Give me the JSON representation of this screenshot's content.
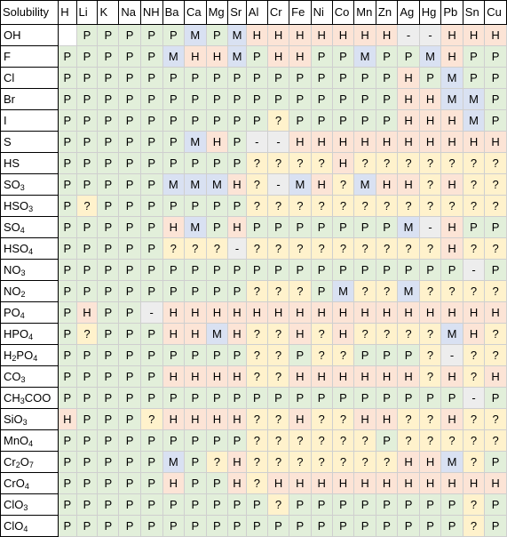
{
  "table": {
    "corner_label": "Solubility",
    "cations": [
      "H",
      "Li",
      "K",
      "Na",
      "NH",
      "Ba",
      "Ca",
      "Mg",
      "Sr",
      "Al",
      "Cr",
      "Fe",
      "Ni",
      "Co",
      "Mn",
      "Zn",
      "Ag",
      "Hg",
      "Pb",
      "Sn",
      "Cu"
    ],
    "legend_colors": {
      "P": "#e2efda",
      "H": "#fce4d6",
      "M": "#d9e1f2",
      "?": "#fff2cc",
      "-": "#ededed"
    },
    "rows": [
      {
        "anion": {
          "base": "OH",
          "sub": ""
        },
        "values": [
          "",
          "P",
          "P",
          "P",
          "P",
          "P",
          "M",
          "P",
          "M",
          "H",
          "H",
          "H",
          "H",
          "H",
          "H",
          "H",
          "-",
          "-",
          "H",
          "H",
          "H"
        ]
      },
      {
        "anion": {
          "base": "F",
          "sub": ""
        },
        "values": [
          "P",
          "P",
          "P",
          "P",
          "P",
          "M",
          "H",
          "H",
          "M",
          "P",
          "H",
          "H",
          "P",
          "P",
          "M",
          "P",
          "P",
          "M",
          "H",
          "P",
          "P"
        ]
      },
      {
        "anion": {
          "base": "Cl",
          "sub": ""
        },
        "values": [
          "P",
          "P",
          "P",
          "P",
          "P",
          "P",
          "P",
          "P",
          "P",
          "P",
          "P",
          "P",
          "P",
          "P",
          "P",
          "P",
          "H",
          "P",
          "M",
          "P",
          "P"
        ]
      },
      {
        "anion": {
          "base": "Br",
          "sub": ""
        },
        "values": [
          "P",
          "P",
          "P",
          "P",
          "P",
          "P",
          "P",
          "P",
          "P",
          "P",
          "P",
          "P",
          "P",
          "P",
          "P",
          "P",
          "H",
          "H",
          "M",
          "M",
          "P"
        ]
      },
      {
        "anion": {
          "base": "I",
          "sub": ""
        },
        "values": [
          "P",
          "P",
          "P",
          "P",
          "P",
          "P",
          "P",
          "P",
          "P",
          "P",
          "?",
          "P",
          "P",
          "P",
          "P",
          "P",
          "H",
          "H",
          "H",
          "M",
          "P"
        ]
      },
      {
        "anion": {
          "base": "S",
          "sub": ""
        },
        "values": [
          "P",
          "P",
          "P",
          "P",
          "P",
          "P",
          "M",
          "H",
          "P",
          "-",
          "-",
          "H",
          "H",
          "H",
          "H",
          "H",
          "H",
          "H",
          "H",
          "H",
          "H"
        ]
      },
      {
        "anion": {
          "base": "HS",
          "sub": ""
        },
        "values": [
          "P",
          "P",
          "P",
          "P",
          "P",
          "P",
          "P",
          "P",
          "P",
          "?",
          "?",
          "?",
          "?",
          "H",
          "?",
          "?",
          "?",
          "?",
          "?",
          "?",
          "?"
        ]
      },
      {
        "anion": {
          "base": "SO",
          "sub": "3"
        },
        "values": [
          "P",
          "P",
          "P",
          "P",
          "P",
          "M",
          "M",
          "M",
          "H",
          "?",
          "-",
          "M",
          "H",
          "?",
          "M",
          "H",
          "H",
          "?",
          "H",
          "?",
          "?"
        ]
      },
      {
        "anion": {
          "base": "HSO",
          "sub": "3"
        },
        "values": [
          "P",
          "?",
          "P",
          "P",
          "P",
          "P",
          "P",
          "P",
          "P",
          "?",
          "?",
          "?",
          "?",
          "?",
          "?",
          "?",
          "?",
          "?",
          "?",
          "?",
          "?"
        ]
      },
      {
        "anion": {
          "base": "SO",
          "sub": "4"
        },
        "values": [
          "P",
          "P",
          "P",
          "P",
          "P",
          "H",
          "M",
          "P",
          "H",
          "P",
          "P",
          "P",
          "P",
          "P",
          "P",
          "P",
          "M",
          "-",
          "H",
          "P",
          "P"
        ]
      },
      {
        "anion": {
          "base": "HSO",
          "sub": "4"
        },
        "values": [
          "P",
          "P",
          "P",
          "P",
          "P",
          "?",
          "?",
          "?",
          "-",
          "?",
          "?",
          "?",
          "?",
          "?",
          "?",
          "?",
          "?",
          "?",
          "H",
          "?",
          "?"
        ]
      },
      {
        "anion": {
          "base": "NO",
          "sub": "3"
        },
        "values": [
          "P",
          "P",
          "P",
          "P",
          "P",
          "P",
          "P",
          "P",
          "P",
          "P",
          "P",
          "P",
          "P",
          "P",
          "P",
          "P",
          "P",
          "P",
          "P",
          "-",
          "P"
        ]
      },
      {
        "anion": {
          "base": "NO",
          "sub": "2"
        },
        "values": [
          "P",
          "P",
          "P",
          "P",
          "P",
          "P",
          "P",
          "P",
          "P",
          "?",
          "?",
          "?",
          "P",
          "M",
          "?",
          "?",
          "M",
          "?",
          "?",
          "?",
          "?"
        ]
      },
      {
        "anion": {
          "base": "PO",
          "sub": "4"
        },
        "values": [
          "P",
          "H",
          "P",
          "P",
          "-",
          "H",
          "H",
          "H",
          "H",
          "H",
          "H",
          "H",
          "H",
          "H",
          "H",
          "H",
          "H",
          "H",
          "H",
          "H",
          "H"
        ]
      },
      {
        "anion": {
          "base": "HPO",
          "sub": "4"
        },
        "values": [
          "P",
          "?",
          "P",
          "P",
          "P",
          "H",
          "H",
          "M",
          "H",
          "?",
          "?",
          "H",
          "?",
          "H",
          "?",
          "?",
          "?",
          "?",
          "M",
          "H",
          "?"
        ]
      },
      {
        "anion": {
          "base": "H",
          "sub": "2",
          "tail": "PO",
          "sub2": "4"
        },
        "values": [
          "P",
          "P",
          "P",
          "P",
          "P",
          "P",
          "P",
          "P",
          "P",
          "?",
          "?",
          "P",
          "?",
          "?",
          "P",
          "P",
          "P",
          "?",
          "-",
          "?",
          "?"
        ]
      },
      {
        "anion": {
          "base": "CO",
          "sub": "3"
        },
        "values": [
          "P",
          "P",
          "P",
          "P",
          "P",
          "H",
          "H",
          "H",
          "H",
          "?",
          "?",
          "H",
          "H",
          "H",
          "H",
          "H",
          "H",
          "?",
          "H",
          "?",
          "H"
        ]
      },
      {
        "anion": {
          "base": "CH",
          "sub": "3",
          "tail": "COO",
          "sub2": ""
        },
        "values": [
          "P",
          "P",
          "P",
          "P",
          "P",
          "P",
          "P",
          "P",
          "P",
          "P",
          "P",
          "P",
          "P",
          "P",
          "P",
          "P",
          "P",
          "P",
          "P",
          "-",
          "P"
        ]
      },
      {
        "anion": {
          "base": "SiO",
          "sub": "3"
        },
        "values": [
          "H",
          "P",
          "P",
          "P",
          "?",
          "H",
          "H",
          "H",
          "H",
          "?",
          "?",
          "H",
          "?",
          "?",
          "H",
          "H",
          "?",
          "?",
          "H",
          "?",
          "?"
        ]
      },
      {
        "anion": {
          "base": "MnO",
          "sub": "4"
        },
        "values": [
          "P",
          "P",
          "P",
          "P",
          "P",
          "P",
          "P",
          "P",
          "P",
          "?",
          "?",
          "?",
          "?",
          "?",
          "?",
          "P",
          "?",
          "?",
          "?",
          "?",
          "?"
        ]
      },
      {
        "anion": {
          "base": "Cr",
          "sub": "2",
          "tail": "O",
          "sub2": "7"
        },
        "values": [
          "P",
          "P",
          "P",
          "P",
          "P",
          "M",
          "P",
          "?",
          "H",
          "?",
          "?",
          "?",
          "?",
          "?",
          "?",
          "?",
          "H",
          "H",
          "M",
          "?",
          "P"
        ]
      },
      {
        "anion": {
          "base": "CrO",
          "sub": "4"
        },
        "values": [
          "P",
          "P",
          "P",
          "P",
          "P",
          "H",
          "P",
          "P",
          "H",
          "?",
          "H",
          "H",
          "H",
          "H",
          "H",
          "H",
          "H",
          "H",
          "H",
          "H",
          "H"
        ]
      },
      {
        "anion": {
          "base": "ClO",
          "sub": "3"
        },
        "values": [
          "P",
          "P",
          "P",
          "P",
          "P",
          "P",
          "P",
          "P",
          "P",
          "P",
          "?",
          "P",
          "P",
          "P",
          "P",
          "P",
          "P",
          "P",
          "P",
          "?",
          "P"
        ]
      },
      {
        "anion": {
          "base": "ClO",
          "sub": "4"
        },
        "values": [
          "P",
          "P",
          "P",
          "P",
          "P",
          "P",
          "P",
          "P",
          "P",
          "P",
          "P",
          "P",
          "P",
          "P",
          "P",
          "P",
          "P",
          "P",
          "P",
          "?",
          "P"
        ]
      }
    ]
  }
}
